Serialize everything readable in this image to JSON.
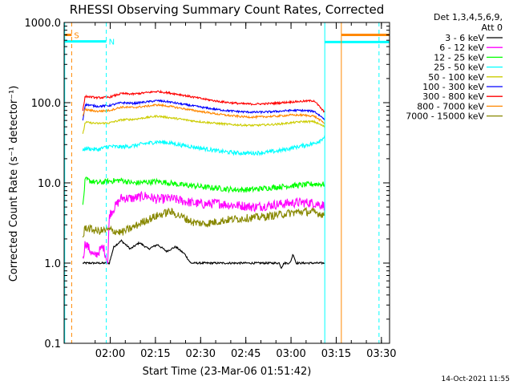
{
  "chart_data": {
    "type": "line",
    "title": "RHESSI Observing Summary Count Rates, Corrected",
    "xlabel": "Start Time (23-Mar-06 01:51:42)",
    "ylabel": "Corrected Count Rate (s⁻¹ detector⁻¹)",
    "yscale": "log",
    "ylim": [
      0.1,
      1000
    ],
    "xlim_minutes_since_start": [
      -7,
      101
    ],
    "x_ticks": [
      {
        "label": "02:00",
        "t": 8.3
      },
      {
        "label": "02:15",
        "t": 23.3
      },
      {
        "label": "02:30",
        "t": 38.3
      },
      {
        "label": "02:45",
        "t": 53.3
      },
      {
        "label": "03:00",
        "t": 68.3
      },
      {
        "label": "03:15",
        "t": 83.3
      },
      {
        "label": "03:30",
        "t": 98.3
      }
    ],
    "y_ticks": [
      {
        "label": "1000.0",
        "v": 1000
      },
      {
        "label": "100.0",
        "v": 100
      },
      {
        "label": "10.0",
        "v": 10
      },
      {
        "label": "1.0",
        "v": 1
      },
      {
        "label": "0.1",
        "v": 0.1
      }
    ],
    "legend_header": [
      "Det 1,3,4,5,6,9,",
      "Att 0"
    ],
    "legend_position": "right",
    "series": [
      {
        "name": "3 - 6 keV",
        "color": "#000000",
        "points": [
          [
            -0.8,
            1
          ],
          [
            8,
            1
          ],
          [
            9.5,
            1.6
          ],
          [
            12,
            1.9
          ],
          [
            15,
            1.5
          ],
          [
            18,
            1.8
          ],
          [
            21,
            1.5
          ],
          [
            24,
            1.7
          ],
          [
            27,
            1.4
          ],
          [
            30,
            1.6
          ],
          [
            33,
            1.3
          ],
          [
            35,
            1.0
          ],
          [
            55,
            1.0
          ],
          [
            64.5,
            1.0
          ],
          [
            65,
            0.87
          ],
          [
            66,
            1.0
          ],
          [
            68,
            1.0
          ],
          [
            69,
            1.3
          ],
          [
            70,
            1.0
          ],
          [
            79.5,
            1.0
          ]
        ]
      },
      {
        "name": "6 - 12 keV",
        "color": "#ff00ff",
        "points": [
          [
            -0.8,
            1.1
          ],
          [
            0,
            1.8
          ],
          [
            3,
            1.2
          ],
          [
            6,
            1.6
          ],
          [
            7.5,
            1.0
          ],
          [
            8,
            4.0
          ],
          [
            12,
            6.5
          ],
          [
            16,
            6.4
          ],
          [
            20,
            6.9
          ],
          [
            24,
            6.2
          ],
          [
            28,
            6.4
          ],
          [
            32,
            6.0
          ],
          [
            36,
            5.6
          ],
          [
            40,
            5.4
          ],
          [
            44,
            5.6
          ],
          [
            48,
            5.3
          ],
          [
            52,
            5.2
          ],
          [
            56,
            5.0
          ],
          [
            60,
            5.2
          ],
          [
            64,
            5.4
          ],
          [
            68,
            5.6
          ],
          [
            72,
            5.7
          ],
          [
            76,
            5.6
          ],
          [
            79.5,
            5.2
          ]
        ]
      },
      {
        "name": "12 - 25 keV",
        "color": "#00ff00",
        "points": [
          [
            -0.8,
            5.0
          ],
          [
            0,
            11.0
          ],
          [
            4,
            10.0
          ],
          [
            8,
            10.5
          ],
          [
            12,
            10.8
          ],
          [
            16,
            9.9
          ],
          [
            20,
            10.2
          ],
          [
            24,
            10.4
          ],
          [
            28,
            10.0
          ],
          [
            32,
            9.4
          ],
          [
            36,
            9.2
          ],
          [
            40,
            8.8
          ],
          [
            44,
            8.6
          ],
          [
            48,
            8.3
          ],
          [
            52,
            8.2
          ],
          [
            56,
            8.3
          ],
          [
            60,
            8.6
          ],
          [
            64,
            8.9
          ],
          [
            68,
            9.2
          ],
          [
            72,
            9.4
          ],
          [
            76,
            9.7
          ],
          [
            79.5,
            9.6
          ]
        ]
      },
      {
        "name": "25 - 50 keV",
        "color": "#00ffff",
        "points": [
          [
            -0.8,
            25.0
          ],
          [
            0,
            27.0
          ],
          [
            4,
            26.0
          ],
          [
            8,
            28.5
          ],
          [
            12,
            28.0
          ],
          [
            16,
            29.0
          ],
          [
            20,
            31.0
          ],
          [
            24,
            32.5
          ],
          [
            28,
            31.5
          ],
          [
            32,
            29.5
          ],
          [
            36,
            28.0
          ],
          [
            40,
            26.5
          ],
          [
            44,
            25.0
          ],
          [
            48,
            24.0
          ],
          [
            52,
            23.5
          ],
          [
            56,
            23.5
          ],
          [
            60,
            24.0
          ],
          [
            64,
            25.0
          ],
          [
            68,
            27.0
          ],
          [
            72,
            29.0
          ],
          [
            76,
            31.0
          ],
          [
            78,
            34.0
          ],
          [
            79.5,
            38.0
          ]
        ]
      },
      {
        "name": "50 - 100 keV",
        "color": "#cccc00",
        "points": [
          [
            -0.8,
            40.0
          ],
          [
            0,
            57.0
          ],
          [
            4,
            55.0
          ],
          [
            8,
            56.0
          ],
          [
            12,
            61.0
          ],
          [
            16,
            62.0
          ],
          [
            20,
            65.0
          ],
          [
            24,
            68.0
          ],
          [
            28,
            65.0
          ],
          [
            32,
            62.0
          ],
          [
            36,
            59.0
          ],
          [
            40,
            57.0
          ],
          [
            44,
            55.0
          ],
          [
            48,
            53.5
          ],
          [
            52,
            52.5
          ],
          [
            56,
            52.0
          ],
          [
            60,
            53.0
          ],
          [
            64,
            54.0
          ],
          [
            68,
            56.0
          ],
          [
            72,
            58.0
          ],
          [
            76,
            58.0
          ],
          [
            79.5,
            50.0
          ]
        ]
      },
      {
        "name": "100 - 300 keV",
        "color": "#0000ff",
        "points": [
          [
            -0.8,
            60.0
          ],
          [
            0,
            95.0
          ],
          [
            4,
            90.0
          ],
          [
            8,
            92.0
          ],
          [
            12,
            100.0
          ],
          [
            16,
            98.0
          ],
          [
            20,
            102.0
          ],
          [
            24,
            106.0
          ],
          [
            28,
            102.0
          ],
          [
            32,
            96.0
          ],
          [
            36,
            91.0
          ],
          [
            40,
            86.0
          ],
          [
            44,
            82.0
          ],
          [
            48,
            79.0
          ],
          [
            52,
            77.0
          ],
          [
            56,
            76.0
          ],
          [
            60,
            76.5
          ],
          [
            64,
            78.0
          ],
          [
            68,
            80.0
          ],
          [
            72,
            80.0
          ],
          [
            76,
            78.0
          ],
          [
            79.5,
            62.0
          ]
        ]
      },
      {
        "name": "300 - 800 keV",
        "color": "#ff0000",
        "points": [
          [
            -0.8,
            80.0
          ],
          [
            0,
            120.0
          ],
          [
            4,
            115.0
          ],
          [
            8,
            117.0
          ],
          [
            12,
            130.0
          ],
          [
            16,
            128.0
          ],
          [
            20,
            133.0
          ],
          [
            24,
            138.0
          ],
          [
            28,
            132.0
          ],
          [
            32,
            125.0
          ],
          [
            36,
            117.0
          ],
          [
            40,
            110.0
          ],
          [
            44,
            104.0
          ],
          [
            48,
            100.0
          ],
          [
            52,
            97.0
          ],
          [
            56,
            96.0
          ],
          [
            60,
            97.0
          ],
          [
            64,
            99.0
          ],
          [
            68,
            102.0
          ],
          [
            72,
            104.0
          ],
          [
            76,
            106.0
          ],
          [
            79.5,
            75.0
          ]
        ]
      },
      {
        "name": "800 - 7000 keV",
        "color": "#ff8800",
        "points": [
          [
            -0.8,
            70.0
          ],
          [
            0,
            82.0
          ],
          [
            4,
            78.0
          ],
          [
            8,
            80.0
          ],
          [
            12,
            88.0
          ],
          [
            16,
            87.0
          ],
          [
            20,
            90.0
          ],
          [
            24,
            94.0
          ],
          [
            28,
            90.0
          ],
          [
            32,
            85.0
          ],
          [
            36,
            80.0
          ],
          [
            40,
            76.0
          ],
          [
            44,
            72.0
          ],
          [
            48,
            69.0
          ],
          [
            52,
            67.0
          ],
          [
            56,
            66.0
          ],
          [
            60,
            67.0
          ],
          [
            64,
            68.0
          ],
          [
            68,
            70.0
          ],
          [
            72,
            70.0
          ],
          [
            76,
            68.0
          ],
          [
            79.5,
            55.0
          ]
        ]
      },
      {
        "name": "7000 - 15000 keV",
        "color": "#888800",
        "points": [
          [
            -0.8,
            2.0
          ],
          [
            0,
            2.8
          ],
          [
            4,
            2.5
          ],
          [
            8,
            2.6
          ],
          [
            12,
            2.4
          ],
          [
            16,
            2.8
          ],
          [
            20,
            3.4
          ],
          [
            24,
            3.9
          ],
          [
            28,
            4.4
          ],
          [
            32,
            3.8
          ],
          [
            36,
            3.2
          ],
          [
            40,
            3.1
          ],
          [
            44,
            3.3
          ],
          [
            48,
            3.5
          ],
          [
            52,
            3.6
          ],
          [
            56,
            3.7
          ],
          [
            60,
            3.8
          ],
          [
            64,
            4.0
          ],
          [
            68,
            4.2
          ],
          [
            72,
            4.4
          ],
          [
            76,
            4.3
          ],
          [
            79.5,
            4.0
          ]
        ]
      }
    ],
    "flags": [
      {
        "label": "S",
        "color": "#ff8800",
        "t_start": -7,
        "t_end": -4.5,
        "level": 700
      },
      {
        "label": "N",
        "color": "#00ffff",
        "t_start": -7,
        "t_end": 7,
        "level": 580
      }
    ],
    "vertical_markers": [
      {
        "t": -6.8,
        "color": "#00ffff",
        "style": "solid"
      },
      {
        "t": -4.5,
        "color": "#ff8800",
        "style": "dashed"
      },
      {
        "t": 7.0,
        "color": "#00ffff",
        "style": "dashed"
      },
      {
        "t": 79.5,
        "color": "#00ffff",
        "style": "solid"
      },
      {
        "t": 85.0,
        "color": "#ff8800",
        "style": "solid"
      },
      {
        "t": 97.5,
        "color": "#00ffff",
        "style": "dashed"
      }
    ],
    "right_segments": [
      {
        "t_start": 79.5,
        "t_end": 101,
        "level": 570,
        "color": "#00ffff"
      },
      {
        "t_start": 85.0,
        "t_end": 101,
        "level": 700,
        "color": "#ff8800"
      }
    ]
  },
  "footer": {
    "date_stamp": "14-Oct-2021 11:55"
  }
}
